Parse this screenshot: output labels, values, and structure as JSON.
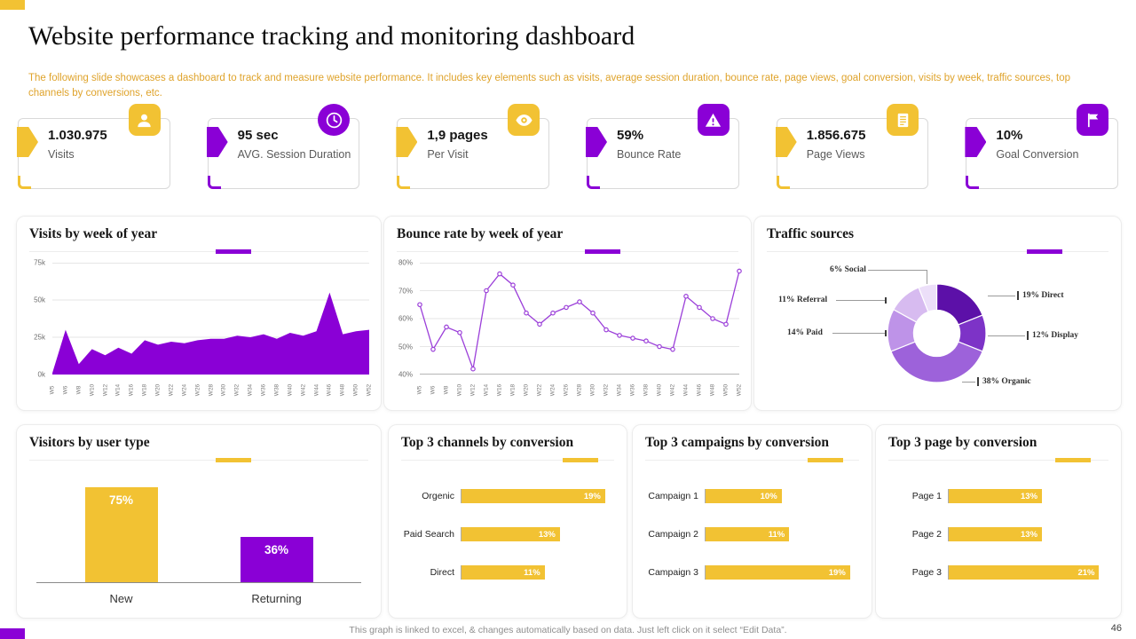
{
  "theme": {
    "yellow": "#F2C233",
    "purple": "#8A00D6",
    "subtitle_color": "#DFA32B"
  },
  "page": {
    "title": "Website performance tracking and monitoring dashboard",
    "subtitle": "The following slide showcases a dashboard to track and measure website performance. It includes key elements such as visits, average session duration, bounce rate, page views, goal conversion, visits by week, traffic sources, top channels by conversions, etc.",
    "footer": "This graph is linked to excel, & changes automatically based on data. Just left click on it select “Edit Data”.",
    "page_number": "46"
  },
  "kpis": [
    {
      "value": "1.030.975",
      "label": "Visits",
      "icon": "user-icon",
      "accent": "#F2C233"
    },
    {
      "value": "95 sec",
      "label": "AVG. Session Duration",
      "icon": "clock-icon",
      "accent": "#8A00D6"
    },
    {
      "value": "1,9 pages",
      "label": "Per Visit",
      "icon": "eye-icon",
      "accent": "#F2C233"
    },
    {
      "value": "59%",
      "label": "Bounce Rate",
      "icon": "warning-icon",
      "accent": "#8A00D6"
    },
    {
      "value": "1.856.675",
      "label": "Page Views",
      "icon": "document-icon",
      "accent": "#F2C233"
    },
    {
      "value": "10%",
      "label": "Goal Conversion",
      "icon": "flag-icon",
      "accent": "#8A00D6"
    }
  ],
  "chart_data": [
    {
      "id": "visits_by_week",
      "type": "area",
      "title": "Visits by week of year",
      "color": "#8A00D6",
      "grid": true,
      "ylim": [
        0,
        75
      ],
      "yticks": [
        "0k",
        "25k",
        "50k",
        "75k"
      ],
      "categories": [
        "W5",
        "W6",
        "W8",
        "W10",
        "W12",
        "W14",
        "W16",
        "W18",
        "W20",
        "W22",
        "W24",
        "W26",
        "W28",
        "W30",
        "W32",
        "W34",
        "W36",
        "W38",
        "W40",
        "W42",
        "W44",
        "W46",
        "W48",
        "W50",
        "W52"
      ],
      "values": [
        1,
        30,
        7,
        17,
        13,
        18,
        14,
        23,
        20,
        22,
        21,
        23,
        24,
        24,
        26,
        25,
        27,
        24,
        28,
        26,
        29,
        55,
        27,
        29,
        30
      ],
      "unit": "thousand visits"
    },
    {
      "id": "bounce_rate_by_week",
      "type": "line",
      "title": "Bounce rate by week of year",
      "color": "#9B3FD9",
      "grid": true,
      "ylim": [
        40,
        80
      ],
      "yticks": [
        "40%",
        "50%",
        "60%",
        "70%",
        "80%"
      ],
      "categories": [
        "W5",
        "W6",
        "W8",
        "W10",
        "W12",
        "W14",
        "W16",
        "W18",
        "W20",
        "W22",
        "W24",
        "W26",
        "W28",
        "W30",
        "W32",
        "W34",
        "W36",
        "W38",
        "W40",
        "W42",
        "W44",
        "W46",
        "W48",
        "W50",
        "W52"
      ],
      "values": [
        65,
        49,
        57,
        55,
        42,
        70,
        76,
        72,
        62,
        58,
        62,
        64,
        66,
        62,
        56,
        54,
        53,
        52,
        50,
        49,
        68,
        64,
        60,
        58,
        77
      ],
      "unit": "percent"
    },
    {
      "id": "traffic_sources",
      "type": "pie",
      "title": "Traffic sources",
      "donut": true,
      "slices": [
        {
          "label": "Direct",
          "value": 19,
          "display": "19% Direct",
          "color": "#5C10A8"
        },
        {
          "label": "Display",
          "value": 12,
          "display": "12% Display",
          "color": "#7D33C7"
        },
        {
          "label": "Organic",
          "value": 38,
          "display": "38% Organic",
          "color": "#9D62DA"
        },
        {
          "label": "Paid",
          "value": 14,
          "display": "14% Paid",
          "color": "#BE93E8"
        },
        {
          "label": "Referral",
          "value": 11,
          "display": "11% Referral",
          "color": "#D7BBF0"
        },
        {
          "label": "Social",
          "value": 6,
          "display": "6% Social",
          "color": "#ECDFF9"
        }
      ]
    },
    {
      "id": "visitors_by_user_type",
      "type": "bar",
      "title": "Visitors by user type",
      "categories": [
        "New",
        "Returning"
      ],
      "values": [
        75,
        36
      ],
      "labels": [
        "75%",
        "36%"
      ],
      "colors": [
        "#F2C233",
        "#8A00D6"
      ],
      "ylim": [
        0,
        100
      ]
    },
    {
      "id": "top_channels",
      "type": "hbar",
      "title": "Top 3 channels by conversion",
      "color": "#F2C233",
      "categories": [
        "Orgenic",
        "Paid Search",
        "Direct"
      ],
      "values": [
        19,
        13,
        11
      ],
      "labels": [
        "19%",
        "13%",
        "11%"
      ]
    },
    {
      "id": "top_campaigns",
      "type": "hbar",
      "title": "Top 3 campaigns by conversion",
      "color": "#F2C233",
      "categories": [
        "Campaign 1",
        "Campaign 2",
        "Campaign 3"
      ],
      "values": [
        10,
        11,
        19
      ],
      "labels": [
        "10%",
        "11%",
        "19%"
      ]
    },
    {
      "id": "top_pages",
      "type": "hbar",
      "title": "Top 3 page by conversion",
      "color": "#F2C233",
      "categories": [
        "Page 1",
        "Page 2",
        "Page 3"
      ],
      "values": [
        13,
        13,
        21
      ],
      "labels": [
        "13%",
        "13%",
        "21%"
      ]
    }
  ]
}
